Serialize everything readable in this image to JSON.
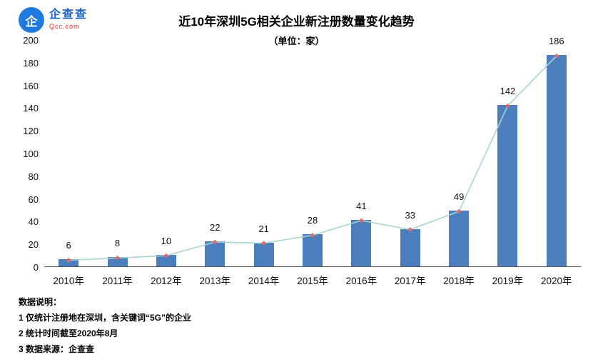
{
  "logo": {
    "name_cn": "企查查",
    "name_en": "Qcc.com",
    "icon_glyph": "企"
  },
  "chart_data": {
    "type": "bar",
    "title": "近10年深圳5G相关企业新注册数量变化趋势",
    "subtitle": "（单位：家）",
    "categories": [
      "2010年",
      "2011年",
      "2012年",
      "2013年",
      "2014年",
      "2015年",
      "2016年",
      "2017年",
      "2018年",
      "2019年",
      "2020年"
    ],
    "values": [
      6,
      8,
      10,
      22,
      21,
      28,
      41,
      33,
      49,
      142,
      186
    ],
    "ylim": [
      0,
      200
    ],
    "ytick_step": 20,
    "grid": false,
    "legend_position": "none",
    "bar_color": "#4a7ebc",
    "line_color": "#a7d5d0",
    "marker_color": "#e06a6a",
    "overlay_line": true
  },
  "notes": {
    "heading": "数据说明：",
    "items": [
      "1 仅统计注册地在深圳，含关键词“5G”的企业",
      "2 统计时间截至2020年8月",
      "3 数据来源：企查查"
    ]
  }
}
